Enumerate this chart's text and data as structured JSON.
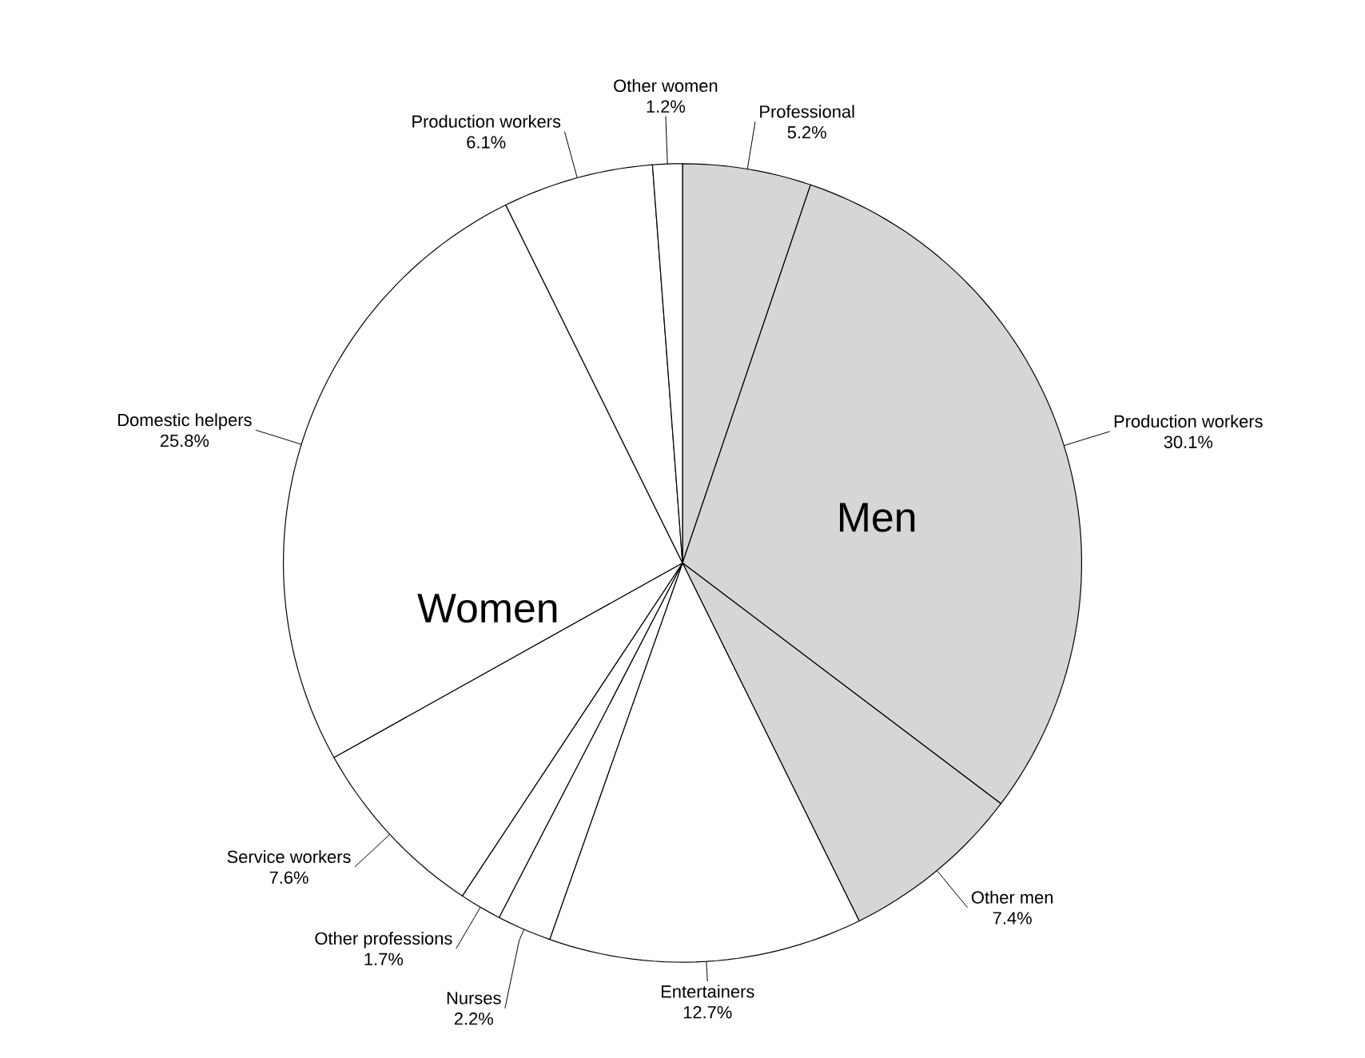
{
  "chart_data": {
    "type": "pie",
    "categories": [
      "Professional",
      "Production workers",
      "Other men",
      "Entertainers",
      "Nurses",
      "Other professions",
      "Service workers",
      "Domestic helpers",
      "Production workers",
      "Other women"
    ],
    "values": [
      5.2,
      30.1,
      7.4,
      12.7,
      2.2,
      1.7,
      7.6,
      25.8,
      6.1,
      1.2
    ],
    "value_labels": [
      "5.2%",
      "30.1%",
      "7.4%",
      "12.7%",
      "2.2%",
      "1.7%",
      "7.6%",
      "25.8%",
      "6.1%",
      "1.2%"
    ],
    "colors": [
      "#d6d6d6",
      "#d6d6d6",
      "#d6d6d6",
      "#ffffff",
      "#ffffff",
      "#ffffff",
      "#ffffff",
      "#ffffff",
      "#ffffff",
      "#ffffff"
    ],
    "annotations": [
      "Men",
      "Women"
    ]
  }
}
